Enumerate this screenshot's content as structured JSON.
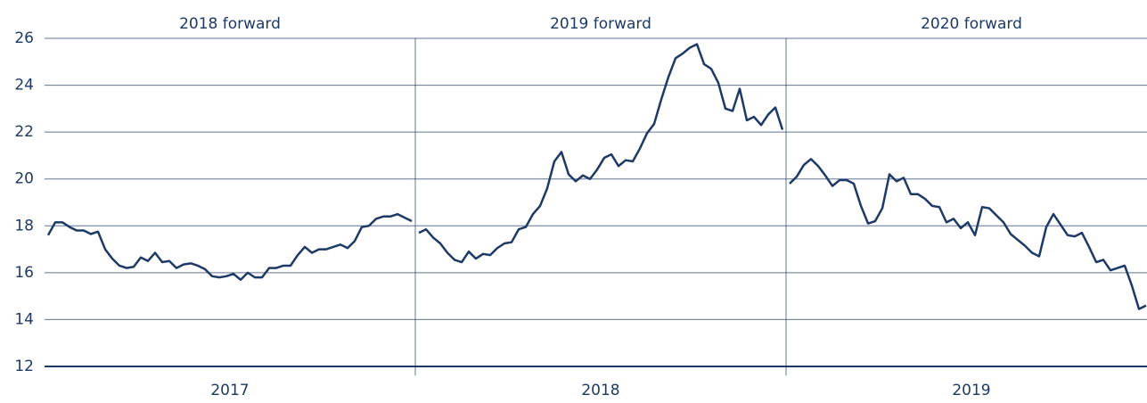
{
  "chart_data": {
    "type": "line",
    "color": "#1d3a66",
    "ylim": [
      12,
      26
    ],
    "yticks": [
      12,
      14,
      16,
      18,
      20,
      22,
      24,
      26
    ],
    "grid": true,
    "panels": [
      {
        "title": "2018 forward",
        "xlabel": "2017",
        "values": [
          17.6,
          18.15,
          18.15,
          17.95,
          17.8,
          17.8,
          17.65,
          17.75,
          17.0,
          16.6,
          16.3,
          16.2,
          16.25,
          16.65,
          16.5,
          16.85,
          16.45,
          16.5,
          16.2,
          16.35,
          16.4,
          16.3,
          16.15,
          15.85,
          15.8,
          15.85,
          15.95,
          15.7,
          16.0,
          15.8,
          15.8,
          16.2,
          16.2,
          16.3,
          16.3,
          16.75,
          17.1,
          16.85,
          17.0,
          17.0,
          17.1,
          17.2,
          17.05,
          17.35,
          17.95,
          18.0,
          18.3,
          18.4,
          18.4,
          18.5,
          18.35,
          18.2
        ]
      },
      {
        "title": "2019 forward",
        "xlabel": "2018",
        "values": [
          17.7,
          17.85,
          17.5,
          17.25,
          16.85,
          16.55,
          16.45,
          16.9,
          16.6,
          16.8,
          16.75,
          17.05,
          17.25,
          17.3,
          17.85,
          17.95,
          18.5,
          18.85,
          19.6,
          20.75,
          21.15,
          20.2,
          19.9,
          20.15,
          20.0,
          20.4,
          20.9,
          21.05,
          20.55,
          20.8,
          20.75,
          21.3,
          21.95,
          22.35,
          23.4,
          24.35,
          25.15,
          25.35,
          25.6,
          25.75,
          24.9,
          24.7,
          24.1,
          23.0,
          22.9,
          23.85,
          22.5,
          22.65,
          22.3,
          22.75,
          23.05,
          22.1
        ]
      },
      {
        "title": "2020 forward",
        "xlabel": "2019",
        "values": [
          19.8,
          20.1,
          20.6,
          20.85,
          20.55,
          20.15,
          19.7,
          19.95,
          19.95,
          19.8,
          18.85,
          18.1,
          18.2,
          18.75,
          20.2,
          19.9,
          20.05,
          19.35,
          19.35,
          19.15,
          18.85,
          18.8,
          18.15,
          18.3,
          17.9,
          18.15,
          17.6,
          18.8,
          18.75,
          18.45,
          18.15,
          17.65,
          17.4,
          17.15,
          16.85,
          16.7,
          17.95,
          18.5,
          18.05,
          17.6,
          17.55,
          17.7,
          17.1,
          16.45,
          16.55,
          16.1,
          16.2,
          16.3,
          15.45,
          14.45,
          14.6
        ]
      }
    ]
  }
}
